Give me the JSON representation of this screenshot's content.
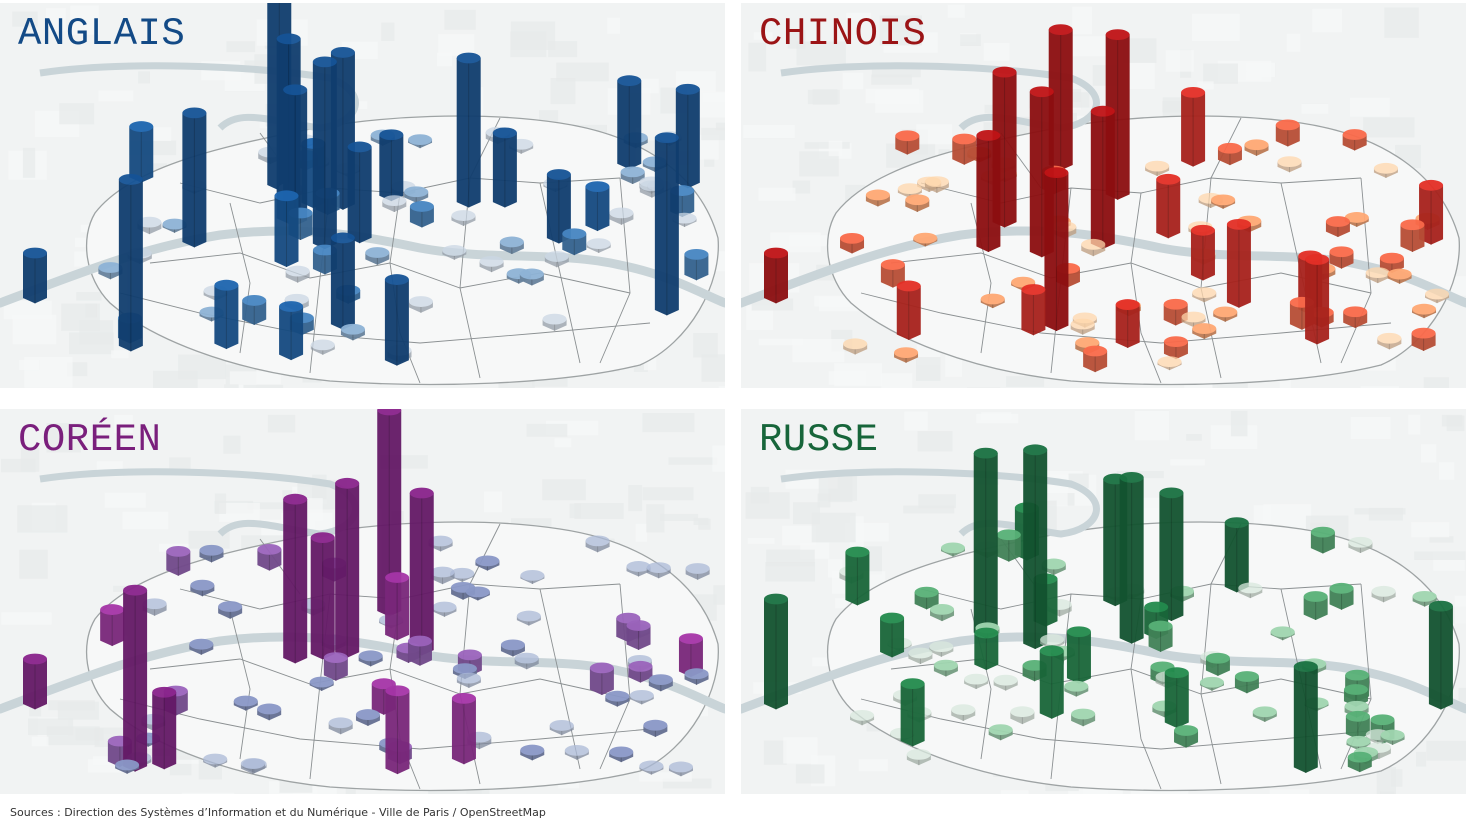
{
  "panels": [
    {
      "title": "ANGLAIS",
      "color": "#134a86",
      "palette": [
        "#b5c0cc",
        "#7fa0bf",
        "#3f78ad",
        "#1a5a9c",
        "#134a86"
      ]
    },
    {
      "title": "CHINOIS",
      "color": "#9b1416",
      "palette": [
        "#e8c09a",
        "#e69668",
        "#df5f42",
        "#cc2a22",
        "#ab1114"
      ]
    },
    {
      "title": "CORÉEN",
      "color": "#7a1f7c",
      "palette": [
        "#9aa6c0",
        "#7b88b2",
        "#8a59a8",
        "#932f95",
        "#7a1f7c"
      ]
    },
    {
      "title": "RUSSE",
      "color": "#17653a",
      "palette": [
        "#c2d0c6",
        "#8fbf9d",
        "#4f9e6a",
        "#1f7c45",
        "#17653a"
      ]
    }
  ],
  "sources": "Sources : Direction des Systèmes d’Information et du Numérique - Ville de Paris / OpenStreetMap"
}
